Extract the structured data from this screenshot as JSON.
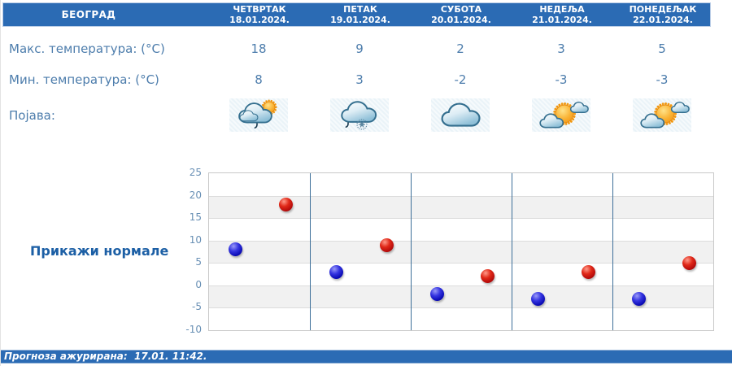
{
  "header": {
    "city": "БЕОГРАД",
    "days": [
      {
        "name": "ЧЕТВРТАК",
        "date": "18.01.2024."
      },
      {
        "name": "ПЕТАК",
        "date": "19.01.2024."
      },
      {
        "name": "СУБОТА",
        "date": "20.01.2024."
      },
      {
        "name": "НЕДЕЉА",
        "date": "21.01.2024."
      },
      {
        "name": "ПОНЕДЕЉАК",
        "date": "22.01.2024."
      }
    ]
  },
  "rows": {
    "max_label": "Макс. температура: (°C)",
    "min_label": "Мин. температура: (°C)",
    "phenomenon_label": "Појава:",
    "max_values": [
      18,
      9,
      2,
      3,
      5
    ],
    "min_values": [
      8,
      3,
      -2,
      -3,
      -3
    ],
    "icons": [
      "sun-cloud-rain-icon",
      "cloud-rain-snow-icon",
      "cloud-icon",
      "sun-cloud-icon",
      "sun-cloud-icon"
    ]
  },
  "normals_button_label": "Прикажи нормале",
  "footer": {
    "updated_text": "Прогноза ажурирана:  17.01. 11:42."
  },
  "colors": {
    "header_bg": "#2b6bb4",
    "body_text": "#4d7dac",
    "min_dot": "#1414c8",
    "max_dot": "#cc1414",
    "day_separator": "#3d6f99"
  },
  "chart_data": {
    "type": "scatter",
    "title": "",
    "xlabel": "",
    "ylabel": "",
    "categories": [
      "18.01.2024.",
      "19.01.2024.",
      "20.01.2024.",
      "21.01.2024.",
      "22.01.2024."
    ],
    "series": [
      {
        "name": "Мин. температура (°C)",
        "dot": "blue",
        "values": [
          8,
          3,
          -2,
          -3,
          -3
        ]
      },
      {
        "name": "Макс. температура (°C)",
        "dot": "red",
        "values": [
          18,
          9,
          2,
          3,
          5
        ]
      }
    ],
    "ylim": [
      -10,
      25
    ],
    "ytick_step": 5,
    "grid": "alternating horizontal bands, blue vertical day separators",
    "legend": "none"
  }
}
